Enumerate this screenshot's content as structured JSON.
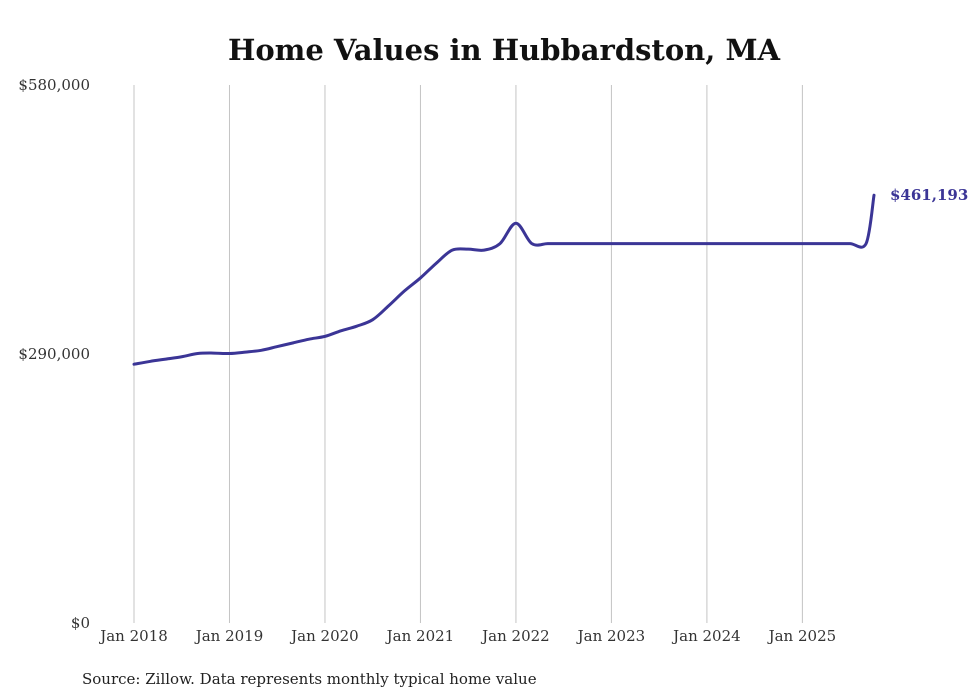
{
  "chart_data": {
    "type": "line",
    "title": "Home Values in Hubbardston, MA",
    "xlabel": "",
    "ylabel": "",
    "ylim": [
      0,
      580000
    ],
    "yticks": [
      {
        "value": 0,
        "label": "$0"
      },
      {
        "value": 290000,
        "label": "$290,000"
      },
      {
        "value": 580000,
        "label": "$580,000"
      }
    ],
    "xticks": [
      {
        "value": 2018.0,
        "label": "Jan 2018"
      },
      {
        "value": 2019.0,
        "label": "Jan 2019"
      },
      {
        "value": 2020.0,
        "label": "Jan 2020"
      },
      {
        "value": 2021.0,
        "label": "Jan 2021"
      },
      {
        "value": 2022.0,
        "label": "Jan 2022"
      },
      {
        "value": 2023.0,
        "label": "Jan 2023"
      },
      {
        "value": 2024.0,
        "label": "Jan 2024"
      },
      {
        "value": 2025.0,
        "label": "Jan 2025"
      }
    ],
    "xlim": [
      2017.95,
      2025.85
    ],
    "grid": "vertical",
    "series": [
      {
        "color": "#3b3596",
        "end_label": "$461,193",
        "x": [
          2018.0,
          2018.167,
          2018.333,
          2018.5,
          2018.667,
          2018.833,
          2019.0,
          2019.167,
          2019.333,
          2019.5,
          2019.667,
          2019.833,
          2020.0,
          2020.167,
          2020.333,
          2020.5,
          2020.667,
          2020.833,
          2021.0,
          2021.167,
          2021.333,
          2021.5,
          2021.667,
          2021.833,
          2022.0,
          2022.167,
          2022.333,
          2022.5,
          2022.667,
          2022.833,
          2023.0,
          2023.167,
          2023.333,
          2023.5,
          2023.667,
          2023.833,
          2024.0,
          2024.167,
          2024.333,
          2024.5,
          2024.667,
          2024.833,
          2025.0,
          2025.167,
          2025.333,
          2025.5,
          2025.667,
          2025.75
        ],
        "values": [
          279000,
          282000,
          284500,
          287000,
          290500,
          291000,
          290500,
          292000,
          294000,
          298000,
          302000,
          306000,
          309000,
          315000,
          320000,
          327000,
          342000,
          358000,
          372000,
          388000,
          402000,
          403000,
          402000,
          409000,
          431000,
          409000,
          409000,
          409000,
          409000,
          409000,
          409000,
          409000,
          409000,
          409000,
          409000,
          409000,
          409000,
          409000,
          409000,
          409000,
          409000,
          409000,
          409000,
          409000,
          409000,
          409000,
          409000,
          461193
        ]
      }
    ]
  },
  "source": "Source: Zillow. Data represents monthly typical home value"
}
